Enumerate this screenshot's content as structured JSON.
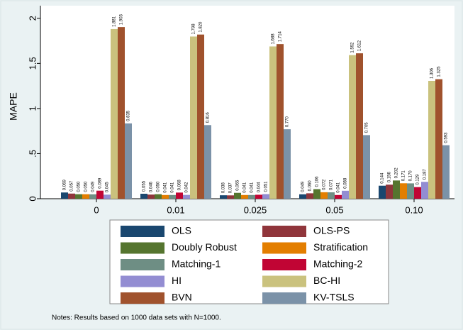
{
  "chart_data": {
    "type": "bar",
    "y_label": "MAPE",
    "notes": "Notes: Results based on 1000 data sets with N=1000.",
    "categories": [
      "0",
      "0.01",
      "0.025",
      "0.05",
      "0.10"
    ],
    "ylim": [
      0,
      2.14
    ],
    "yticks": [
      0,
      {
        "value": 0.5,
        "label": ".5"
      },
      1,
      1.5,
      2
    ],
    "series": [
      {
        "name": "OLS",
        "color": "#1a476f",
        "values": [
          0.069,
          0.055,
          0.038,
          0.049,
          0.144
        ],
        "value_labels": [
          "0.069",
          "0.055",
          "0.038",
          "0.049",
          "0.144"
        ]
      },
      {
        "name": "OLS-PS",
        "color": "#90353b",
        "values": [
          0.057,
          0.046,
          0.037,
          0.06,
          0.156
        ],
        "value_labels": [
          "0.057",
          "0.046",
          "0.037",
          "0.060",
          "0.156"
        ]
      },
      {
        "name": "Doubly Robust",
        "color": "#55752f",
        "values": [
          0.05,
          0.05,
          0.065,
          0.106,
          0.202
        ],
        "value_labels": [
          "0.050",
          "0.050",
          "0.065",
          "0.106",
          "0.202"
        ]
      },
      {
        "name": "Stratification",
        "color": "#e37e00",
        "values": [
          0.05,
          0.041,
          0.041,
          0.072,
          0.171
        ],
        "value_labels": [
          "0.050",
          "0.041",
          "0.041",
          "0.072",
          "0.171"
        ]
      },
      {
        "name": "Matching-1",
        "color": "#6e8e84",
        "values": [
          0.049,
          0.041,
          0.041,
          0.071,
          0.17
        ],
        "value_labels": [
          "0.049",
          "0.041",
          "0.041",
          "0.071",
          "0.170"
        ]
      },
      {
        "name": "Matching-2",
        "color": "#c10534",
        "values": [
          0.089,
          0.068,
          0.044,
          0.041,
          0.129
        ],
        "value_labels": [
          "0.089",
          "0.068",
          "0.044",
          "0.041",
          "0.129"
        ]
      },
      {
        "name": "HI",
        "color": "#938dd2",
        "values": [
          0.045,
          0.042,
          0.051,
          0.088,
          0.187
        ],
        "value_labels": [
          "0.045",
          "0.042",
          "0.051",
          "0.088",
          "0.187"
        ]
      },
      {
        "name": "BC-HI",
        "color": "#cac27e",
        "values": [
          1.881,
          1.798,
          1.688,
          1.592,
          1.306
        ],
        "value_labels": [
          "1.881",
          "1.798",
          "1.688",
          "1.592",
          "1.306"
        ]
      },
      {
        "name": "BVN",
        "color": "#a0522d",
        "values": [
          1.903,
          1.82,
          1.714,
          1.612,
          1.325
        ],
        "value_labels": [
          "1.903",
          "1.820",
          "1.714",
          "1.612",
          "1.325"
        ]
      },
      {
        "name": "KV-TSLS",
        "color": "#7b92a8",
        "values": [
          0.835,
          0.816,
          0.77,
          0.705,
          0.593
        ],
        "value_labels": [
          "0.835",
          "0.816",
          "0.770",
          "0.705",
          "0.593"
        ]
      }
    ]
  }
}
